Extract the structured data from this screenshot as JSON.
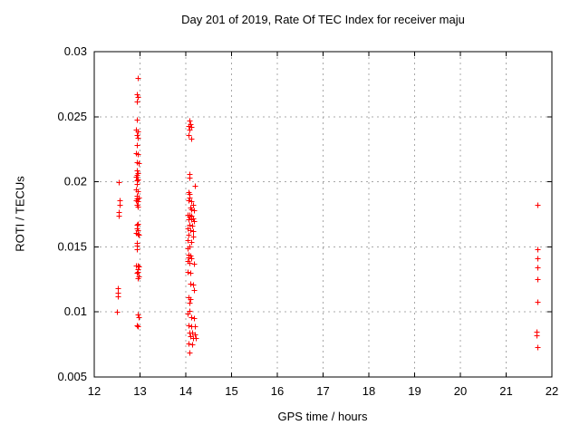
{
  "window": {
    "background": "#ffffff"
  },
  "chart_data": {
    "type": "scatter",
    "title": "Day 201 of 2019, Rate Of TEC Index for receiver maju",
    "xlabel": "GPS time / hours",
    "ylabel": "ROTI / TECUs",
    "xlim": [
      12,
      22
    ],
    "ylim": [
      0.005,
      0.03
    ],
    "xticks": [
      "12",
      "13",
      "14",
      "15",
      "16",
      "17",
      "18",
      "19",
      "20",
      "21",
      "22"
    ],
    "yticks": [
      "0.005",
      "0.01",
      "0.015",
      "0.02",
      "0.025",
      "0.03"
    ],
    "grid": true,
    "legend_position": "none",
    "marker": "plus",
    "colors": {
      "marker": "#ff0000",
      "grid": "#a8a8a8",
      "axis": "#000000",
      "text": "#000000",
      "background": "#ffffff"
    },
    "series": [
      {
        "name": "ROTI",
        "points": [
          [
            12.53,
            0.02
          ],
          [
            12.56,
            0.0186
          ],
          [
            12.56,
            0.0182
          ],
          [
            12.53,
            0.0177
          ],
          [
            12.53,
            0.0174
          ],
          [
            12.51,
            0.0118
          ],
          [
            12.51,
            0.0115
          ],
          [
            12.51,
            0.0112
          ],
          [
            12.5,
            0.01
          ],
          [
            12.95,
            0.028
          ],
          [
            12.93,
            0.0267
          ],
          [
            12.96,
            0.0265
          ],
          [
            12.94,
            0.0262
          ],
          [
            12.93,
            0.0248
          ],
          [
            12.92,
            0.024
          ],
          [
            12.96,
            0.0239
          ],
          [
            12.94,
            0.0236
          ],
          [
            12.96,
            0.0234
          ],
          [
            12.94,
            0.0228
          ],
          [
            12.92,
            0.0222
          ],
          [
            12.96,
            0.0221
          ],
          [
            12.94,
            0.0215
          ],
          [
            12.97,
            0.0214
          ],
          [
            12.94,
            0.0209
          ],
          [
            12.96,
            0.0207
          ],
          [
            12.94,
            0.0205
          ],
          [
            12.92,
            0.0204
          ],
          [
            12.96,
            0.0202
          ],
          [
            12.94,
            0.0201
          ],
          [
            12.94,
            0.0198
          ],
          [
            12.92,
            0.0194
          ],
          [
            12.96,
            0.0193
          ],
          [
            12.94,
            0.0189
          ],
          [
            12.97,
            0.0188
          ],
          [
            12.94,
            0.0187
          ],
          [
            12.92,
            0.0186
          ],
          [
            12.96,
            0.0185
          ],
          [
            12.94,
            0.0182
          ],
          [
            12.96,
            0.0181
          ],
          [
            12.96,
            0.0168
          ],
          [
            12.94,
            0.0167
          ],
          [
            12.93,
            0.0164
          ],
          [
            12.96,
            0.0163
          ],
          [
            12.92,
            0.0161
          ],
          [
            12.95,
            0.016
          ],
          [
            12.98,
            0.0159
          ],
          [
            12.94,
            0.0153
          ],
          [
            12.94,
            0.0151
          ],
          [
            12.93,
            0.0148
          ],
          [
            12.92,
            0.0136
          ],
          [
            12.95,
            0.0136
          ],
          [
            12.98,
            0.0135
          ],
          [
            12.95,
            0.0133
          ],
          [
            12.96,
            0.0131
          ],
          [
            12.94,
            0.013
          ],
          [
            12.97,
            0.0127
          ],
          [
            12.96,
            0.0126
          ],
          [
            12.95,
            0.0098
          ],
          [
            12.98,
            0.0096
          ],
          [
            12.93,
            0.009
          ],
          [
            12.96,
            0.0089
          ],
          [
            14.08,
            0.0247
          ],
          [
            14.1,
            0.0244
          ],
          [
            14.06,
            0.0243
          ],
          [
            14.12,
            0.0242
          ],
          [
            14.08,
            0.024
          ],
          [
            14.05,
            0.0236
          ],
          [
            14.11,
            0.0233
          ],
          [
            14.08,
            0.0206
          ],
          [
            14.08,
            0.0203
          ],
          [
            14.2,
            0.0197
          ],
          [
            14.05,
            0.0192
          ],
          [
            14.08,
            0.0191
          ],
          [
            14.07,
            0.0188
          ],
          [
            14.05,
            0.0186
          ],
          [
            14.12,
            0.0185
          ],
          [
            14.15,
            0.0182
          ],
          [
            14.09,
            0.018
          ],
          [
            14.12,
            0.0179
          ],
          [
            14.17,
            0.0178
          ],
          [
            14.04,
            0.0175
          ],
          [
            14.08,
            0.0175
          ],
          [
            14.12,
            0.0174
          ],
          [
            14.07,
            0.0173
          ],
          [
            14.11,
            0.0172
          ],
          [
            14.16,
            0.0172
          ],
          [
            14.06,
            0.0171
          ],
          [
            14.12,
            0.0171
          ],
          [
            14.18,
            0.017
          ],
          [
            14.08,
            0.0167
          ],
          [
            14.14,
            0.0166
          ],
          [
            14.04,
            0.0164
          ],
          [
            14.1,
            0.0163
          ],
          [
            14.16,
            0.0162
          ],
          [
            14.06,
            0.0159
          ],
          [
            14.15,
            0.0158
          ],
          [
            14.04,
            0.0155
          ],
          [
            14.12,
            0.0154
          ],
          [
            14.08,
            0.015
          ],
          [
            14.03,
            0.0149
          ],
          [
            14.05,
            0.0144
          ],
          [
            14.1,
            0.0143
          ],
          [
            14.05,
            0.0142
          ],
          [
            14.11,
            0.0141
          ],
          [
            14.03,
            0.0139
          ],
          [
            14.08,
            0.0138
          ],
          [
            14.17,
            0.0137
          ],
          [
            14.04,
            0.0131
          ],
          [
            14.09,
            0.013
          ],
          [
            14.1,
            0.0122
          ],
          [
            14.16,
            0.0121
          ],
          [
            14.18,
            0.0117
          ],
          [
            14.05,
            0.0111
          ],
          [
            14.09,
            0.011
          ],
          [
            14.07,
            0.0107
          ],
          [
            14.07,
            0.0101
          ],
          [
            14.03,
            0.0099
          ],
          [
            14.12,
            0.0096
          ],
          [
            14.18,
            0.0095
          ],
          [
            14.05,
            0.009
          ],
          [
            14.11,
            0.0089
          ],
          [
            14.19,
            0.0089
          ],
          [
            14.07,
            0.0084
          ],
          [
            14.13,
            0.0084
          ],
          [
            14.2,
            0.0083
          ],
          [
            14.09,
            0.0081
          ],
          [
            14.15,
            0.008
          ],
          [
            14.22,
            0.008
          ],
          [
            14.05,
            0.0076
          ],
          [
            14.13,
            0.0075
          ],
          [
            14.07,
            0.0069
          ],
          [
            21.68,
            0.0182
          ],
          [
            21.68,
            0.0148
          ],
          [
            21.68,
            0.0141
          ],
          [
            21.68,
            0.0134
          ],
          [
            21.68,
            0.0125
          ],
          [
            21.68,
            0.0108
          ],
          [
            21.67,
            0.0085
          ],
          [
            21.67,
            0.0082
          ],
          [
            21.68,
            0.0073
          ]
        ]
      }
    ]
  }
}
